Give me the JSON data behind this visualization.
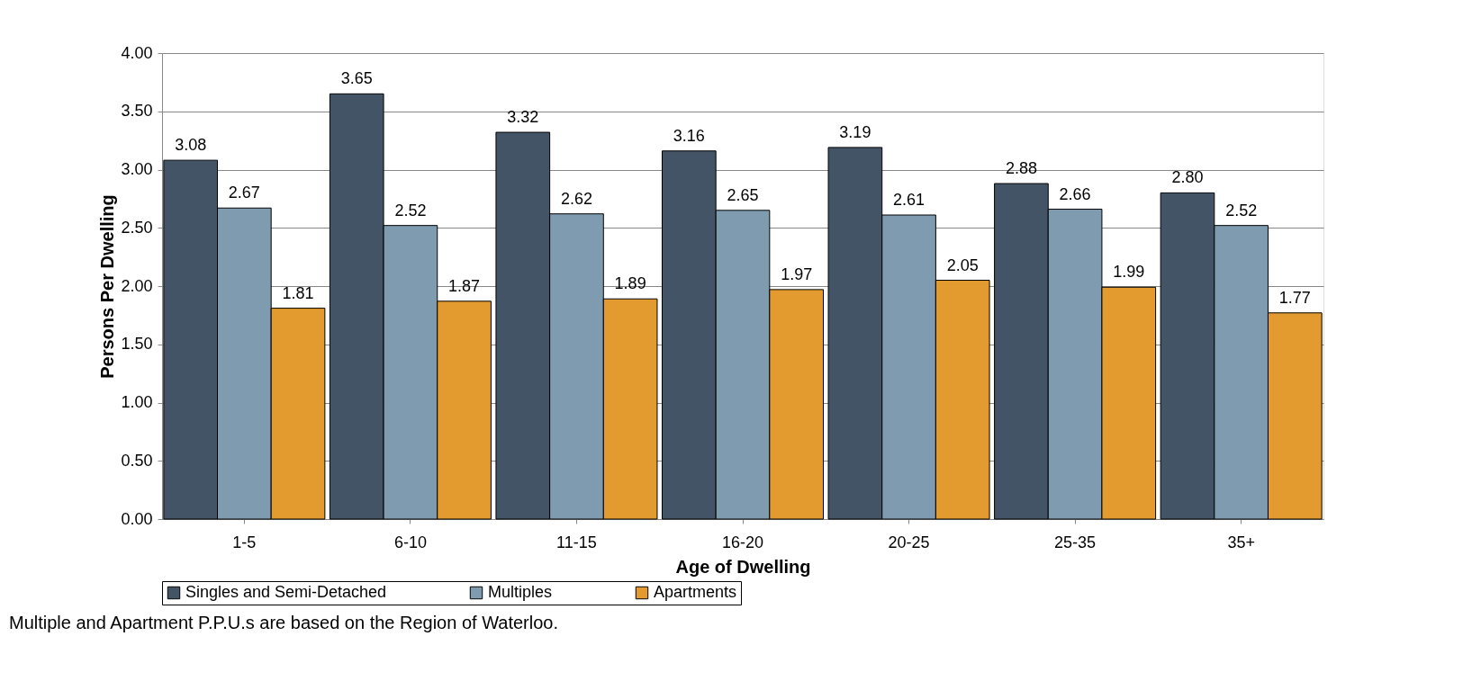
{
  "chart_data": {
    "type": "bar",
    "xlabel": "Age of Dwelling",
    "ylabel": "Persons Per Dwelling",
    "categories": [
      "1-5",
      "6-10",
      "11-15",
      "16-20",
      "20-25",
      "25-35",
      "35+"
    ],
    "series": [
      {
        "name": "Singles and Semi-Detached",
        "color": "#435466",
        "values": [
          3.08,
          3.65,
          3.32,
          3.16,
          3.19,
          2.88,
          2.8
        ],
        "value_labels": [
          "3.08",
          "3.65",
          "3.32",
          "3.16",
          "3.19",
          "2.88",
          "2.80"
        ]
      },
      {
        "name": "Multiples",
        "color": "#7e9bb0",
        "values": [
          2.67,
          2.52,
          2.62,
          2.65,
          2.61,
          2.66,
          2.52
        ],
        "value_labels": [
          "2.67",
          "2.52",
          "2.62",
          "2.65",
          "2.61",
          "2.66",
          "2.52"
        ]
      },
      {
        "name": "Apartments",
        "color": "#e39b2f",
        "values": [
          1.81,
          1.87,
          1.89,
          1.97,
          2.05,
          1.99,
          1.77
        ],
        "value_labels": [
          "1.81",
          "1.87",
          "1.89",
          "1.97",
          "2.05",
          "1.99",
          "1.77"
        ]
      }
    ],
    "ylim": [
      0,
      4
    ],
    "yticks": [
      {
        "value": 0,
        "label": "0.00"
      },
      {
        "value": 0.5,
        "label": "0.50"
      },
      {
        "value": 1,
        "label": "1.00"
      },
      {
        "value": 1.5,
        "label": "1.50"
      },
      {
        "value": 2,
        "label": "2.00"
      },
      {
        "value": 2.5,
        "label": "2.50"
      },
      {
        "value": 3,
        "label": "3.00"
      },
      {
        "value": 3.5,
        "label": "3.50"
      },
      {
        "value": 4,
        "label": "4.00"
      }
    ],
    "grid": "y",
    "legend": "bottom",
    "annotations": [
      "Multiple and Apartment P.P.U.s are based on the Region of Waterloo."
    ]
  }
}
